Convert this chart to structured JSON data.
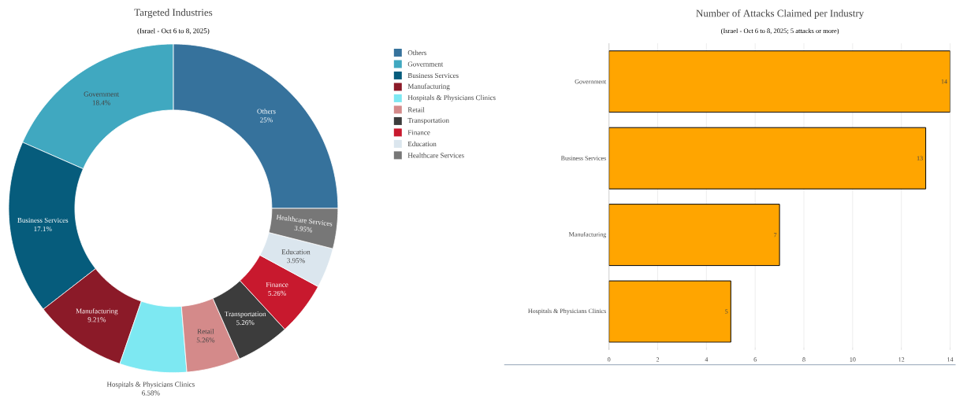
{
  "chart_data": [
    {
      "type": "donut",
      "title": "Targeted Industries",
      "subtitle": "(Israel - Oct 6 to 8, 2025)",
      "categories": [
        "Others",
        "Government",
        "Business Services",
        "Manufacturing",
        "Hospitals & Physicians Clinics",
        "Retail",
        "Transportation",
        "Finance",
        "Education",
        "Healthcare Services"
      ],
      "values": [
        25,
        18.4,
        17.1,
        9.21,
        6.58,
        5.26,
        5.26,
        5.26,
        3.95,
        3.95
      ],
      "value_labels": [
        "25%",
        "18.4%",
        "17.1%",
        "9.21%",
        "6.58%",
        "5.26%",
        "5.26%",
        "5.26%",
        "3.95%",
        "3.95%"
      ],
      "colors": [
        "#36729c",
        "#40a8c0",
        "#065c7c",
        "#8b1a28",
        "#7de8f2",
        "#d48a8a",
        "#3c3c3c",
        "#c8192e",
        "#dbe6ee",
        "#777777"
      ],
      "legend": "right"
    },
    {
      "type": "bar",
      "orientation": "horizontal",
      "title": "Number of Attacks Claimed per Industry",
      "subtitle": "(Israel - Oct 6 to 8, 2025; 5 attacks or more)",
      "categories": [
        "Government",
        "Business Services",
        "Manufacturing",
        "Hospitals & Physicians Clinics"
      ],
      "values": [
        14,
        13,
        7,
        5
      ],
      "color": "#ffa500",
      "xlim": [
        0,
        14
      ],
      "xticks": [
        0,
        2,
        4,
        6,
        8,
        10,
        12,
        14
      ],
      "grid": "x",
      "data_labels": true
    }
  ]
}
